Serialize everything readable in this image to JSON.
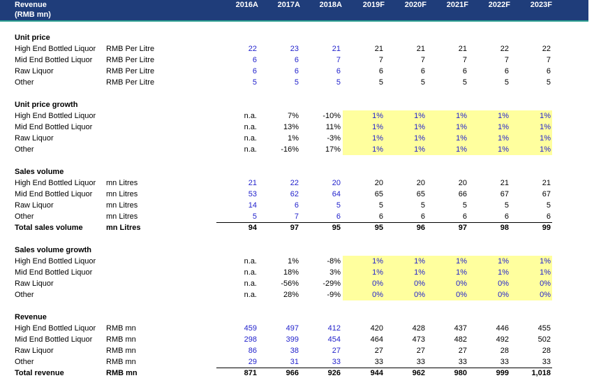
{
  "header": {
    "title": "Revenue",
    "subtitle": "(RMB mn)",
    "years": [
      "2016A",
      "2017A",
      "2018A",
      "2019F",
      "2020F",
      "2021F",
      "2022F",
      "2023F"
    ]
  },
  "colors": {
    "header_bg": "#1f3d7a",
    "historical": "#2222cc",
    "forecast_highlight": "#ffff9e"
  },
  "sections": [
    {
      "title": "Unit price",
      "rows": [
        {
          "label": "High End Bottled Liquor",
          "unit": "RMB Per Litre",
          "values": [
            "22",
            "23",
            "21",
            "21",
            "21",
            "21",
            "22",
            "22"
          ]
        },
        {
          "label": "Mid End Bottled Liquor",
          "unit": "RMB Per Litre",
          "values": [
            "6",
            "6",
            "7",
            "7",
            "7",
            "7",
            "7",
            "7"
          ]
        },
        {
          "label": "Raw Liquor",
          "unit": "RMB Per Litre",
          "values": [
            "6",
            "6",
            "6",
            "6",
            "6",
            "6",
            "6",
            "6"
          ]
        },
        {
          "label": "Other",
          "unit": "RMB Per Litre",
          "values": [
            "5",
            "5",
            "5",
            "5",
            "5",
            "5",
            "5",
            "5"
          ]
        }
      ]
    },
    {
      "title": "Unit price growth",
      "rows": [
        {
          "label": "High End Bottled Liquor",
          "unit": "",
          "values": [
            "n.a.",
            "7%",
            "-10%",
            "1%",
            "1%",
            "1%",
            "1%",
            "1%"
          ]
        },
        {
          "label": "Mid End Bottled Liquor",
          "unit": "",
          "values": [
            "n.a.",
            "13%",
            "11%",
            "1%",
            "1%",
            "1%",
            "1%",
            "1%"
          ]
        },
        {
          "label": "Raw Liquor",
          "unit": "",
          "values": [
            "n.a.",
            "1%",
            "-3%",
            "1%",
            "1%",
            "1%",
            "1%",
            "1%"
          ]
        },
        {
          "label": "Other",
          "unit": "",
          "values": [
            "n.a.",
            "-16%",
            "17%",
            "1%",
            "1%",
            "1%",
            "1%",
            "1%"
          ]
        }
      ]
    },
    {
      "title": "Sales volume",
      "rows": [
        {
          "label": "High End Bottled Liquor",
          "unit": "mn Litres",
          "values": [
            "21",
            "22",
            "20",
            "20",
            "20",
            "20",
            "21",
            "21"
          ]
        },
        {
          "label": "Mid End Bottled Liquor",
          "unit": "mn Litres",
          "values": [
            "53",
            "62",
            "64",
            "65",
            "65",
            "66",
            "67",
            "67"
          ]
        },
        {
          "label": "Raw Liquor",
          "unit": "mn Litres",
          "values": [
            "14",
            "6",
            "5",
            "5",
            "5",
            "5",
            "5",
            "5"
          ]
        },
        {
          "label": "Other",
          "unit": "mn Litres",
          "values": [
            "5",
            "7",
            "6",
            "6",
            "6",
            "6",
            "6",
            "6"
          ]
        }
      ],
      "total": {
        "label": "Total sales volume",
        "unit": "mn Litres",
        "values": [
          "94",
          "97",
          "95",
          "95",
          "96",
          "97",
          "98",
          "99"
        ]
      }
    },
    {
      "title": "Sales volume growth",
      "rows": [
        {
          "label": "High End Bottled Liquor",
          "unit": "",
          "values": [
            "n.a.",
            "1%",
            "-8%",
            "1%",
            "1%",
            "1%",
            "1%",
            "1%"
          ]
        },
        {
          "label": "Mid End Bottled Liquor",
          "unit": "",
          "values": [
            "n.a.",
            "18%",
            "3%",
            "1%",
            "1%",
            "1%",
            "1%",
            "1%"
          ]
        },
        {
          "label": "Raw Liquor",
          "unit": "",
          "values": [
            "n.a.",
            "-56%",
            "-29%",
            "0%",
            "0%",
            "0%",
            "0%",
            "0%"
          ]
        },
        {
          "label": "Other",
          "unit": "",
          "values": [
            "n.a.",
            "28%",
            "-9%",
            "0%",
            "0%",
            "0%",
            "0%",
            "0%"
          ]
        }
      ]
    },
    {
      "title": "Revenue",
      "rows": [
        {
          "label": "High End Bottled Liquor",
          "unit": "RMB mn",
          "values": [
            "459",
            "497",
            "412",
            "420",
            "428",
            "437",
            "446",
            "455"
          ]
        },
        {
          "label": "Mid End Bottled Liquor",
          "unit": "RMB mn",
          "values": [
            "298",
            "399",
            "454",
            "464",
            "473",
            "482",
            "492",
            "502"
          ]
        },
        {
          "label": "Raw Liquor",
          "unit": "RMB mn",
          "values": [
            "86",
            "38",
            "27",
            "27",
            "27",
            "27",
            "28",
            "28"
          ]
        },
        {
          "label": "Other",
          "unit": "RMB mn",
          "values": [
            "29",
            "31",
            "33",
            "33",
            "33",
            "33",
            "33",
            "33"
          ]
        }
      ],
      "total": {
        "label": "Total revenue",
        "unit": "RMB mn",
        "values": [
          "871",
          "966",
          "926",
          "944",
          "962",
          "980",
          "999",
          "1,018"
        ]
      }
    }
  ]
}
